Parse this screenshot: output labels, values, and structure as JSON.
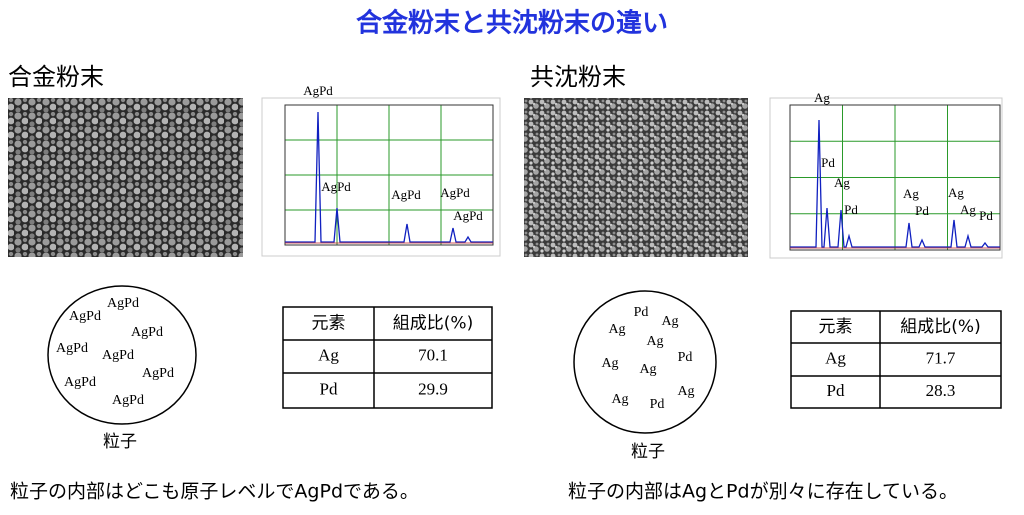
{
  "title": "合金粉末と共沈粉末の違い",
  "panels": [
    {
      "heading": "合金粉末",
      "xrd_labels": [
        "AgPd",
        "AgPd",
        "AgPd",
        "AgPd",
        "AgPd"
      ],
      "particle_labels": [
        "AgPd",
        "AgPd",
        "AgPd",
        "AgPd",
        "AgPd",
        "AgPd",
        "AgPd",
        "AgPd"
      ],
      "particle_caption": "粒子",
      "table": {
        "header": [
          "元素",
          "組成比(%)"
        ],
        "rows": [
          [
            "Ag",
            "70.1"
          ],
          [
            "Pd",
            "29.9"
          ]
        ]
      },
      "note": "粒子の内部はどこも原子レベルでAgPdである。"
    },
    {
      "heading": "共沈粉末",
      "xrd_labels": [
        "Ag",
        "Pd",
        "Ag",
        "Pd",
        "Ag",
        "Pd",
        "Ag",
        "Ag",
        "Pd"
      ],
      "particle_labels": [
        "Pd",
        "Ag",
        "Ag",
        "Ag",
        "Ag",
        "Pd",
        "Ag",
        "Ag",
        "Ag",
        "Pd"
      ],
      "particle_caption": "粒子",
      "table": {
        "header": [
          "元素",
          "組成比(%)"
        ],
        "rows": [
          [
            "Ag",
            "71.7"
          ],
          [
            "Pd",
            "28.3"
          ]
        ]
      },
      "note": "粒子の内部はAgとPdが別々に存在している。"
    }
  ]
}
